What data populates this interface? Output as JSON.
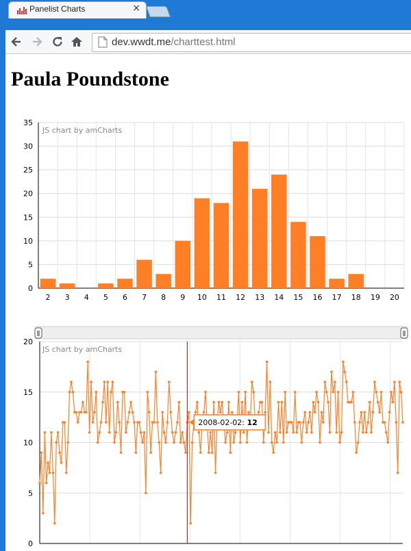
{
  "browser": {
    "tab_title": "Panelist Charts",
    "close_glyph": "×",
    "url_host": "dev.wwdt.me",
    "url_path": "/charttest.html",
    "icons": [
      "back-icon",
      "forward-icon",
      "reload-icon",
      "home-icon",
      "page-icon",
      "chart-favicon-icon"
    ]
  },
  "page": {
    "heading": "Paula Poundstone"
  },
  "chart_data": [
    {
      "type": "bar",
      "credit": "JS chart by amCharts",
      "color": "#ff7f27",
      "categories": [
        "2",
        "3",
        "4",
        "5",
        "6",
        "7",
        "8",
        "9",
        "10",
        "11",
        "12",
        "13",
        "14",
        "15",
        "16",
        "17",
        "18",
        "19",
        "20"
      ],
      "values": [
        2,
        1,
        0,
        1,
        2,
        6,
        3,
        10,
        19,
        18,
        31,
        21,
        24,
        14,
        11,
        2,
        3,
        0,
        0
      ],
      "ylim": [
        0,
        35
      ],
      "yticks": [
        0,
        5,
        10,
        15,
        20,
        25,
        30,
        35
      ],
      "grid": true
    },
    {
      "type": "line",
      "credit": "JS chart by amCharts",
      "color": "#ff7f27",
      "cursor_color": "#cc0000",
      "ylim": [
        0,
        20
      ],
      "yticks": [
        0,
        5,
        10,
        15,
        20
      ],
      "grid": true,
      "scrollbar": true,
      "tooltip": {
        "date": "2008-02-02",
        "value": "12"
      },
      "cursor_index": 89,
      "values": [
        6,
        9,
        3,
        11,
        6,
        8,
        7,
        11,
        7,
        2,
        10,
        11,
        9,
        8,
        12,
        12,
        7,
        10,
        15,
        16,
        15,
        13,
        13,
        12,
        13,
        13,
        14,
        13,
        13,
        18,
        11,
        16,
        12,
        13,
        15,
        10,
        11,
        12,
        14,
        16,
        12,
        16,
        11,
        15,
        16,
        10,
        11,
        14,
        12,
        9,
        15,
        15,
        11,
        12,
        13,
        14,
        13,
        12,
        9,
        12,
        12,
        11,
        10,
        11,
        5,
        15,
        13,
        9,
        12,
        12,
        17,
        12,
        10,
        7,
        13,
        11,
        10,
        12,
        16,
        13,
        11,
        10,
        11,
        12,
        14,
        10,
        11,
        10,
        9,
        12,
        13,
        2,
        10,
        12,
        13,
        14,
        11,
        9,
        12,
        13,
        15,
        12,
        9,
        11,
        9,
        14,
        7,
        12,
        14,
        13,
        14,
        12,
        10,
        11,
        14,
        9,
        13,
        10,
        11,
        12,
        15,
        10,
        14,
        11,
        15,
        10,
        13,
        12,
        16,
        15,
        12,
        12,
        13,
        14,
        14,
        10,
        13,
        18,
        11,
        16,
        10,
        9,
        11,
        10,
        14,
        11,
        14,
        10,
        15,
        11,
        12,
        12,
        12,
        11,
        15,
        11,
        12,
        12,
        10,
        12,
        13,
        11,
        12,
        13,
        11,
        14,
        13,
        15,
        14,
        10,
        13,
        12,
        16,
        15,
        14,
        11,
        17,
        15,
        16,
        11,
        15,
        10,
        11,
        18,
        17,
        16,
        14,
        14,
        14,
        15,
        12,
        9,
        10,
        12,
        13,
        11,
        13,
        11,
        12,
        14,
        11,
        13,
        16,
        15,
        14,
        13,
        15,
        12,
        12,
        11,
        10,
        13,
        15,
        14,
        16,
        12,
        7,
        16,
        15,
        12
      ]
    }
  ]
}
